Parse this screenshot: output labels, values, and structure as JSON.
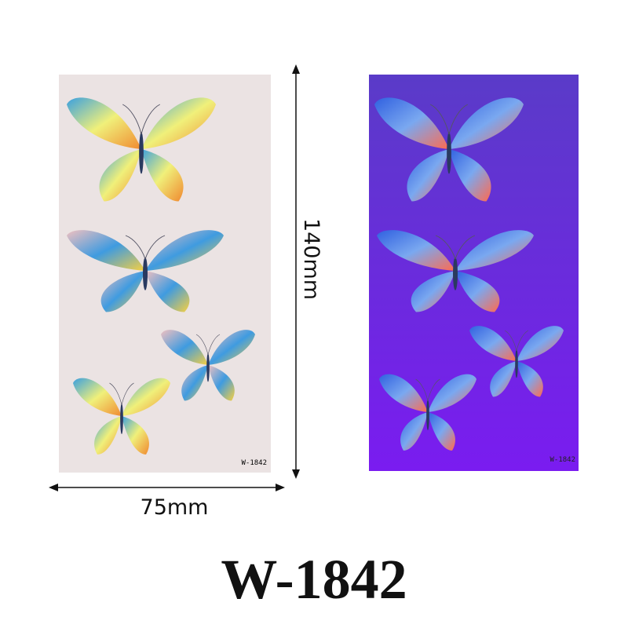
{
  "left_panel": {
    "code": "W-1842"
  },
  "right_panel": {
    "code": "W-1842"
  },
  "dimensions": {
    "height": "140mm",
    "width": "75mm"
  },
  "title": "W-1842"
}
